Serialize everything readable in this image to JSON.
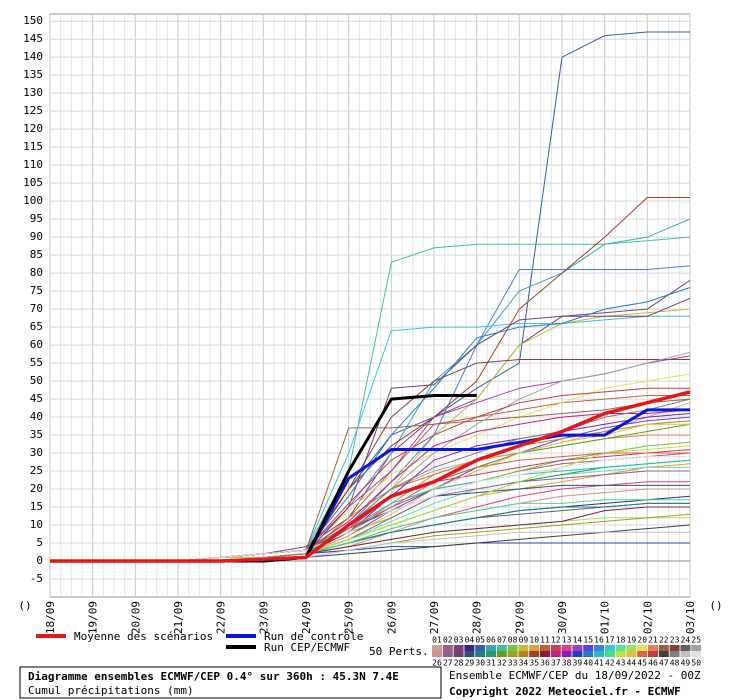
{
  "chart_data": {
    "type": "line",
    "title": "Diagramme ensembles ECMWF/CEP 0.4° sur 360h : 45.3N 7.4E",
    "subtitle": "Cumul précipitations (mm)",
    "run_info": "Ensemble ECMWF/CEP du 18/09/2022 - 00Z",
    "copyright": "Copyright 2022 Meteociel.fr - ECMWF",
    "perturbations_label": "50 Perts.",
    "axis_markers": [
      "()",
      "()"
    ],
    "categories": [
      "18/09",
      "19/09",
      "20/09",
      "21/09",
      "22/09",
      "23/09",
      "24/09",
      "25/09",
      "26/09",
      "27/09",
      "28/09",
      "29/09",
      "30/09",
      "01/10",
      "02/10",
      "03/10"
    ],
    "ylim": [
      -10,
      152
    ],
    "yticks": [
      -5,
      0,
      5,
      10,
      15,
      20,
      25,
      30,
      35,
      40,
      45,
      50,
      55,
      60,
      65,
      70,
      75,
      80,
      85,
      90,
      95,
      100,
      105,
      110,
      115,
      120,
      125,
      130,
      135,
      140,
      145,
      150
    ],
    "grid": true,
    "mean": {
      "name": "Moyenne des scénarios",
      "color": "#e8141c",
      "values": [
        0,
        0,
        0,
        0,
        0,
        0.5,
        1,
        10,
        18,
        22,
        28,
        32,
        36,
        41,
        44,
        47
      ]
    },
    "control": {
      "name": "Run de contrôle",
      "color": "#0a14e0",
      "values": [
        0,
        0,
        0,
        0,
        0,
        0,
        1,
        23,
        31,
        31,
        31,
        33,
        35,
        35,
        42,
        42
      ]
    },
    "cep": {
      "name": "Run CEP/ECMWF",
      "color": "#000000",
      "values": [
        0,
        0,
        0,
        0,
        0,
        0,
        1,
        25,
        45,
        46,
        46,
        null,
        null,
        null,
        null,
        null
      ]
    },
    "series": [
      {
        "name": "01",
        "color": "#c8a0a0",
        "values": [
          0,
          0,
          0,
          0,
          1,
          2,
          3,
          10,
          20,
          25,
          28,
          30,
          33,
          36,
          40,
          44
        ]
      },
      {
        "name": "02",
        "color": "#a06080",
        "values": [
          0,
          0,
          0,
          0,
          0,
          1,
          2,
          8,
          15,
          20,
          22,
          25,
          27,
          28,
          29,
          30
        ]
      },
      {
        "name": "03",
        "color": "#804080",
        "values": [
          0,
          0,
          0,
          0,
          1,
          2,
          4,
          12,
          30,
          40,
          45,
          60,
          68,
          69,
          70,
          78
        ]
      },
      {
        "name": "04",
        "color": "#402080",
        "values": [
          0,
          0,
          0,
          0,
          0,
          1,
          2,
          5,
          8,
          10,
          12,
          14,
          15,
          16,
          17,
          18
        ]
      },
      {
        "name": "05",
        "color": "#3060a0",
        "values": [
          0,
          0,
          0,
          0,
          1,
          2,
          3,
          20,
          35,
          40,
          48,
          55,
          140,
          146,
          147,
          147
        ]
      },
      {
        "name": "06",
        "color": "#40a0c0",
        "values": [
          0,
          0,
          0,
          0,
          0,
          1,
          2,
          15,
          30,
          50,
          60,
          75,
          80,
          88,
          90,
          95
        ]
      },
      {
        "name": "07",
        "color": "#40c0a0",
        "values": [
          0,
          0,
          0,
          0,
          1,
          2,
          3,
          25,
          83,
          87,
          88,
          88,
          88,
          88,
          89,
          90
        ]
      },
      {
        "name": "08",
        "color": "#80c040",
        "values": [
          0,
          0,
          0,
          0,
          0,
          1,
          2,
          8,
          12,
          18,
          22,
          25,
          28,
          30,
          32,
          33
        ]
      },
      {
        "name": "09",
        "color": "#c0c040",
        "values": [
          0,
          0,
          0,
          0,
          0,
          1,
          2,
          10,
          20,
          35,
          45,
          60,
          66,
          68,
          69,
          70
        ]
      },
      {
        "name": "10",
        "color": "#e0a040",
        "values": [
          0,
          0,
          0,
          0,
          1,
          1,
          2,
          6,
          10,
          14,
          18,
          20,
          22,
          24,
          26,
          27
        ]
      },
      {
        "name": "11",
        "color": "#c06040",
        "values": [
          0,
          0,
          0,
          0,
          0,
          1,
          2,
          12,
          25,
          38,
          40,
          42,
          44,
          45,
          46,
          46
        ]
      },
      {
        "name": "12",
        "color": "#c04060",
        "values": [
          0,
          0,
          0,
          0,
          1,
          2,
          3,
          9,
          18,
          22,
          24,
          26,
          28,
          29,
          30,
          31
        ]
      },
      {
        "name": "13",
        "color": "#e04080",
        "values": [
          0,
          0,
          0,
          0,
          0,
          1,
          2,
          5,
          9,
          12,
          15,
          18,
          20,
          21,
          22,
          22
        ]
      },
      {
        "name": "14",
        "color": "#a040c0",
        "values": [
          0,
          0,
          0,
          0,
          1,
          2,
          3,
          15,
          25,
          40,
          44,
          48,
          50,
          52,
          55,
          57
        ]
      },
      {
        "name": "15",
        "color": "#6040e0",
        "values": [
          0,
          0,
          0,
          0,
          0,
          1,
          2,
          7,
          14,
          20,
          26,
          30,
          34,
          37,
          39,
          40
        ]
      },
      {
        "name": "16",
        "color": "#4080e0",
        "values": [
          0,
          0,
          0,
          0,
          0,
          1,
          2,
          10,
          22,
          35,
          60,
          81,
          81,
          81,
          81,
          82
        ]
      },
      {
        "name": "17",
        "color": "#40c0e0",
        "values": [
          0,
          0,
          0,
          0,
          1,
          2,
          3,
          30,
          64,
          65,
          65,
          66,
          66,
          67,
          68,
          68
        ]
      },
      {
        "name": "18",
        "color": "#60e0a0",
        "values": [
          0,
          0,
          0,
          0,
          0,
          1,
          2,
          6,
          11,
          16,
          20,
          22,
          24,
          25,
          26,
          26
        ]
      },
      {
        "name": "19",
        "color": "#a0e060",
        "values": [
          0,
          0,
          0,
          0,
          0,
          1,
          2,
          4,
          6,
          8,
          9,
          10,
          11,
          12,
          12,
          12
        ]
      },
      {
        "name": "20",
        "color": "#e0e060",
        "values": [
          0,
          0,
          0,
          0,
          1,
          2,
          3,
          14,
          24,
          30,
          35,
          40,
          44,
          48,
          50,
          52
        ]
      },
      {
        "name": "21",
        "color": "#e08060",
        "values": [
          0,
          0,
          0,
          0,
          0,
          1,
          2,
          8,
          16,
          24,
          28,
          30,
          32,
          34,
          35,
          35
        ]
      },
      {
        "name": "22",
        "color": "#a06040",
        "values": [
          0,
          0,
          0,
          0,
          1,
          2,
          3,
          37,
          37,
          38,
          39,
          40,
          41,
          42,
          44,
          45
        ]
      },
      {
        "name": "23",
        "color": "#804040",
        "values": [
          0,
          0,
          0,
          0,
          0,
          1,
          2,
          20,
          40,
          50,
          55,
          56,
          56,
          56,
          56,
          56
        ]
      },
      {
        "name": "24",
        "color": "#606060",
        "values": [
          0,
          0,
          0,
          0,
          0,
          1,
          2,
          5,
          8,
          10,
          12,
          13,
          14,
          15,
          16,
          16
        ]
      },
      {
        "name": "25",
        "color": "#a0a0a0",
        "values": [
          0,
          0,
          0,
          0,
          1,
          2,
          3,
          10,
          20,
          30,
          38,
          45,
          50,
          52,
          55,
          58
        ]
      },
      {
        "name": "26",
        "color": "#d09090",
        "values": [
          0,
          0,
          0,
          0,
          0,
          1,
          2,
          4,
          8,
          12,
          14,
          16,
          18,
          19,
          20,
          20
        ]
      },
      {
        "name": "27",
        "color": "#906090",
        "values": [
          0,
          0,
          0,
          0,
          1,
          1,
          2,
          6,
          12,
          18,
          20,
          22,
          23,
          24,
          25,
          25
        ]
      },
      {
        "name": "28",
        "color": "#704070",
        "values": [
          0,
          0,
          0,
          0,
          0,
          1,
          2,
          15,
          48,
          49,
          60,
          67,
          68,
          68,
          68,
          73
        ]
      },
      {
        "name": "29",
        "color": "#305070",
        "values": [
          0,
          0,
          0,
          0,
          1,
          2,
          3,
          9,
          14,
          18,
          19,
          20,
          21,
          21,
          21,
          21
        ]
      },
      {
        "name": "30",
        "color": "#208080",
        "values": [
          0,
          0,
          0,
          0,
          0,
          1,
          2,
          5,
          8,
          10,
          12,
          14,
          15,
          15,
          16,
          16
        ]
      },
      {
        "name": "31",
        "color": "#20a060",
        "values": [
          0,
          0,
          0,
          0,
          0,
          1,
          2,
          6,
          10,
          14,
          18,
          22,
          24,
          26,
          27,
          28
        ]
      },
      {
        "name": "32",
        "color": "#60a020",
        "values": [
          0,
          0,
          0,
          0,
          1,
          2,
          3,
          10,
          18,
          22,
          26,
          30,
          32,
          34,
          36,
          38
        ]
      },
      {
        "name": "33",
        "color": "#a0a020",
        "values": [
          0,
          0,
          0,
          0,
          0,
          1,
          2,
          3,
          5,
          7,
          8,
          9,
          10,
          11,
          12,
          13
        ]
      },
      {
        "name": "34",
        "color": "#c08020",
        "values": [
          0,
          0,
          0,
          0,
          0,
          1,
          2,
          12,
          20,
          24,
          28,
          32,
          34,
          36,
          38,
          39
        ]
      },
      {
        "name": "35",
        "color": "#a04020",
        "values": [
          0,
          0,
          0,
          0,
          1,
          2,
          3,
          20,
          32,
          40,
          50,
          70,
          80,
          90,
          101,
          101
        ]
      },
      {
        "name": "36",
        "color": "#802040",
        "values": [
          0,
          0,
          0,
          0,
          0,
          1,
          2,
          4,
          6,
          8,
          9,
          10,
          11,
          14,
          15,
          15
        ]
      },
      {
        "name": "37",
        "color": "#c02080",
        "values": [
          0,
          0,
          0,
          0,
          1,
          2,
          3,
          11,
          22,
          32,
          36,
          38,
          40,
          41,
          41,
          42
        ]
      },
      {
        "name": "38",
        "color": "#8020c0",
        "values": [
          0,
          0,
          0,
          0,
          0,
          1,
          2,
          8,
          18,
          28,
          32,
          34,
          36,
          38,
          40,
          41
        ]
      },
      {
        "name": "39",
        "color": "#2040c0",
        "values": [
          0,
          0,
          0,
          0,
          0,
          1,
          2,
          3,
          4,
          4,
          5,
          5,
          5,
          5,
          5,
          5
        ]
      },
      {
        "name": "40",
        "color": "#2080c0",
        "values": [
          0,
          0,
          0,
          0,
          1,
          2,
          3,
          18,
          35,
          48,
          62,
          65,
          66,
          70,
          72,
          76
        ]
      },
      {
        "name": "41",
        "color": "#20c0c0",
        "values": [
          0,
          0,
          0,
          0,
          0,
          1,
          2,
          9,
          16,
          20,
          22,
          24,
          25,
          26,
          27,
          28
        ]
      },
      {
        "name": "42",
        "color": "#40e080",
        "values": [
          0,
          0,
          0,
          0,
          0,
          1,
          2,
          5,
          9,
          12,
          14,
          16,
          16,
          17,
          17,
          17
        ]
      },
      {
        "name": "43",
        "color": "#c0e040",
        "values": [
          0,
          0,
          0,
          0,
          1,
          1,
          2,
          6,
          10,
          14,
          18,
          22,
          26,
          30,
          31,
          32
        ]
      },
      {
        "name": "44",
        "color": "#e0c040",
        "values": [
          0,
          0,
          0,
          0,
          0,
          1,
          2,
          7,
          13,
          20,
          25,
          30,
          33,
          35,
          38,
          38
        ]
      },
      {
        "name": "45",
        "color": "#e06040",
        "values": [
          0,
          0,
          0,
          0,
          0,
          1,
          2,
          9,
          15,
          22,
          26,
          28,
          29,
          30,
          30,
          30
        ]
      },
      {
        "name": "46",
        "color": "#c04040",
        "values": [
          0,
          0,
          0,
          0,
          1,
          2,
          3,
          16,
          28,
          35,
          40,
          44,
          46,
          47,
          48,
          48
        ]
      },
      {
        "name": "47",
        "color": "#404040",
        "values": [
          0,
          0,
          0,
          0,
          0,
          0,
          1,
          2,
          3,
          4,
          5,
          6,
          7,
          8,
          9,
          10
        ]
      },
      {
        "name": "48",
        "color": "#808080",
        "values": [
          0,
          0,
          0,
          0,
          0,
          1,
          2,
          10,
          20,
          26,
          30,
          34,
          36,
          40,
          42,
          45
        ]
      },
      {
        "name": "49",
        "color": "#c0c0c0",
        "values": [
          0,
          0,
          0,
          0,
          0,
          1,
          1,
          3,
          5,
          6,
          7,
          8,
          8,
          8,
          8,
          8
        ]
      },
      {
        "name": "50",
        "color": "#e0e0e0",
        "values": [
          0,
          0,
          0,
          0,
          1,
          2,
          3,
          8,
          14,
          18,
          22,
          24,
          26,
          28,
          29,
          29
        ]
      }
    ]
  }
}
